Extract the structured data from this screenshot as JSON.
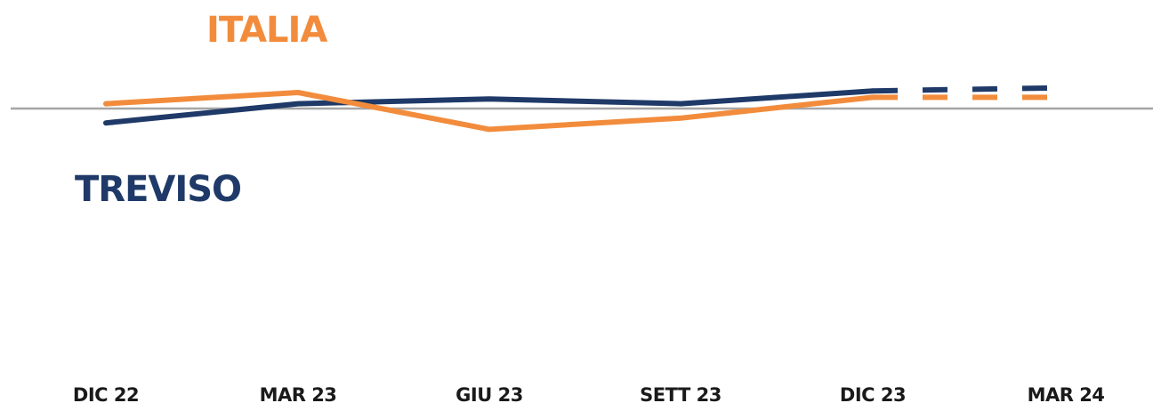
{
  "chart_data": {
    "type": "line",
    "title": "",
    "xlabel": "",
    "ylabel": "",
    "categories": [
      "DIC 22",
      "MAR 23",
      "GIU 23",
      "SETT 23",
      "DIC 23",
      "MAR 24"
    ],
    "reference_line": 0,
    "grid": false,
    "legend": "inline labels",
    "series": [
      {
        "name": "ITALIA",
        "color": "#F28C3C",
        "values": [
          0.3,
          1.0,
          -1.3,
          -0.6,
          0.7,
          0.7
        ],
        "projected_from_index": 4
      },
      {
        "name": "TREVISO",
        "color": "#1F3A68",
        "values": [
          -0.9,
          0.3,
          0.6,
          0.3,
          1.1,
          1.3
        ],
        "projected_from_index": 4
      }
    ]
  }
}
